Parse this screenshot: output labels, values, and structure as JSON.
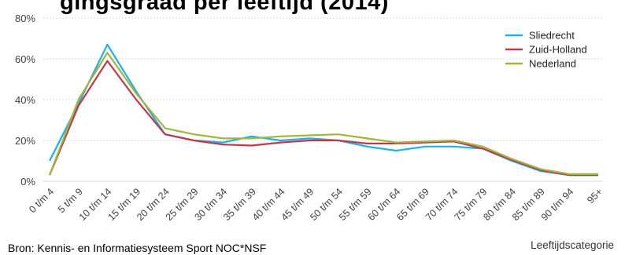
{
  "chart_data": {
    "type": "line",
    "title": "gingsgraad per leeftijd (2014)",
    "xlabel": "Leeftijdscategorie",
    "ylabel": "",
    "ylim": [
      0,
      80
    ],
    "yticks": [
      "0%",
      "20%",
      "40%",
      "60%",
      "80%"
    ],
    "grid": "horizontal",
    "legend_position": "top-right",
    "categories": [
      "0 t/m 4",
      "5 t/m 9",
      "10 t/m 14",
      "15 t/m 19",
      "20 t/m 24",
      "25 t/m 29",
      "30 t/m 34",
      "35 t/m 39",
      "40 t/m 44",
      "45 t/m 49",
      "50 t/m 54",
      "55 t/m 59",
      "60 t/m 64",
      "65 t/m 69",
      "70 t/m 74",
      "75 t/m 79",
      "80 t/m 84",
      "85 t/m 89",
      "90 t/m 94",
      "95+"
    ],
    "series": [
      {
        "name": "Sliedrecht",
        "color": "#1ab2e8",
        "values": [
          10,
          38,
          67,
          44,
          23,
          20,
          19,
          22,
          20,
          21,
          20,
          17,
          15,
          17,
          17,
          16,
          10,
          5,
          3,
          3
        ]
      },
      {
        "name": "Zuid-Holland",
        "color": "#c0394b",
        "values": [
          3,
          37,
          59,
          40,
          23,
          20,
          18,
          17.5,
          19,
          20,
          20,
          18.5,
          18.5,
          19,
          19.5,
          16,
          10.5,
          5.5,
          3,
          3
        ]
      },
      {
        "name": "Nederland",
        "color": "#a4b43c",
        "values": [
          3,
          40,
          63,
          43,
          26,
          23,
          21,
          21,
          22,
          22.5,
          23,
          21,
          19,
          19.5,
          20,
          17,
          11,
          6,
          3.5,
          3.5
        ]
      }
    ]
  },
  "source": "Bron: Kennis- en Informatiesysteem Sport NOC*NSF"
}
